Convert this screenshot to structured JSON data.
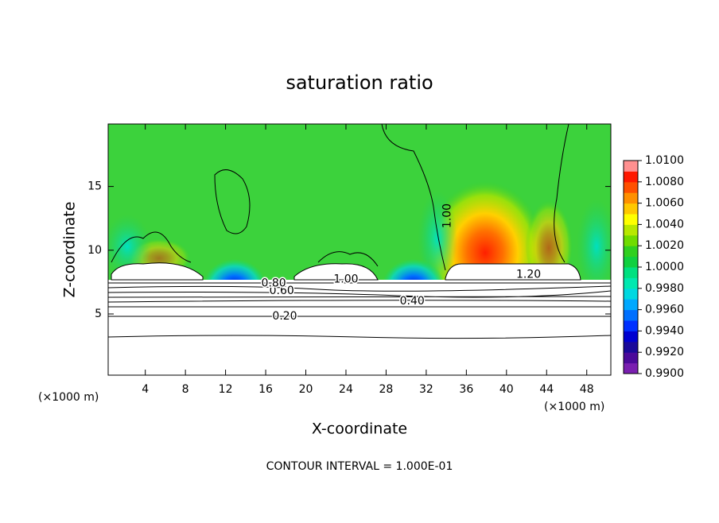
{
  "chart_data": {
    "type": "contour",
    "title": "saturation ratio",
    "x_label": "X-coordinate",
    "y_label": "Z-coordinate",
    "x_unit_left": "(×1000 m)",
    "x_unit_right": "(×1000 m)",
    "footer": "CONTOUR INTERVAL = 1.000E-01",
    "xlim": [
      0.3,
      50.4
    ],
    "xticks": [
      4,
      8,
      12,
      16,
      20,
      24,
      28,
      32,
      36,
      40,
      44,
      48
    ],
    "ylim": [
      0.2,
      19.9
    ],
    "yticks": [
      5,
      10,
      15
    ],
    "contour_labels": [
      {
        "value": 0.2,
        "label": "0.20"
      },
      {
        "value": 0.4,
        "label": "0.40"
      },
      {
        "value": 0.6,
        "label": "0.60"
      },
      {
        "value": 0.8,
        "label": "0.80"
      },
      {
        "value": 1.0,
        "label": "1.00"
      },
      {
        "value": 1.0,
        "label": "1.00"
      },
      {
        "value": 1.2,
        "label": "1.20"
      }
    ],
    "colorbar": {
      "lim": [
        0.99,
        1.01
      ],
      "ticks": [
        {
          "value": 0.99,
          "label": "0.9900"
        },
        {
          "value": 0.992,
          "label": "0.9920"
        },
        {
          "value": 0.994,
          "label": "0.9940"
        },
        {
          "value": 0.996,
          "label": "0.9960"
        },
        {
          "value": 0.998,
          "label": "0.9980"
        },
        {
          "value": 1.0,
          "label": "1.0000"
        },
        {
          "value": 1.002,
          "label": "1.0020"
        },
        {
          "value": 1.004,
          "label": "1.0040"
        },
        {
          "value": 1.006,
          "label": "1.0060"
        },
        {
          "value": 1.008,
          "label": "1.0080"
        },
        {
          "value": 1.01,
          "label": "1.0100"
        }
      ],
      "colors": [
        "#7a1fb0",
        "#4b0a9a",
        "#1a0a9a",
        "#0000d0",
        "#0030ff",
        "#0070ff",
        "#00a8ff",
        "#00d8e0",
        "#00e8b0",
        "#00e080",
        "#10d040",
        "#30d020",
        "#70dc00",
        "#b8e800",
        "#ffff00",
        "#ffc800",
        "#ff9000",
        "#ff5000",
        "#ff1800",
        "#ff9090"
      ]
    }
  }
}
